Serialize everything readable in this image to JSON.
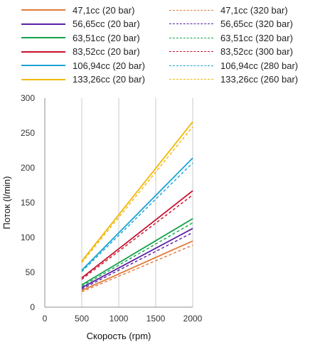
{
  "chart_data": {
    "type": "line",
    "title": "",
    "xlabel": "Скорость  (rpm)",
    "ylabel": "Поток  (l/min)",
    "xlim": [
      0,
      2000
    ],
    "ylim": [
      0,
      300
    ],
    "xticks": [
      "0",
      "500",
      "1000",
      "1500",
      "2000"
    ],
    "yticks": [
      "0",
      "50",
      "100",
      "150",
      "200",
      "250",
      "300"
    ],
    "grid": "vertical",
    "legend_position": "top",
    "series": [
      {
        "name": "47,1cc (20 bar)",
        "color": "#e07b39",
        "dash": "solid",
        "x": [
          500,
          2000
        ],
        "y": [
          24,
          95
        ]
      },
      {
        "name": "47,1cc (320 bar)",
        "color": "#e07b39",
        "dash": "dashed",
        "x": [
          500,
          2000
        ],
        "y": [
          22,
          89
        ]
      },
      {
        "name": "56,65cc (20 bar)",
        "color": "#5b1fa8",
        "dash": "solid",
        "x": [
          500,
          2000
        ],
        "y": [
          28,
          113
        ]
      },
      {
        "name": "56,65cc (320 bar)",
        "color": "#5b1fa8",
        "dash": "dashed",
        "x": [
          500,
          2000
        ],
        "y": [
          26,
          107
        ]
      },
      {
        "name": "63,51cc (20 bar)",
        "color": "#13a34a",
        "dash": "solid",
        "x": [
          500,
          2000
        ],
        "y": [
          32,
          127
        ]
      },
      {
        "name": "63,51cc (320 bar)",
        "color": "#13a34a",
        "dash": "dashed",
        "x": [
          500,
          2000
        ],
        "y": [
          30,
          121
        ]
      },
      {
        "name": "83,52cc (20 bar)",
        "color": "#c8102e",
        "dash": "solid",
        "x": [
          500,
          2000
        ],
        "y": [
          42,
          167
        ]
      },
      {
        "name": "83,52cc (300 bar)",
        "color": "#c8102e",
        "dash": "dashed",
        "x": [
          500,
          2000
        ],
        "y": [
          40,
          161
        ]
      },
      {
        "name": "106,94cc (20 bar)",
        "color": "#1aa3d4",
        "dash": "solid",
        "x": [
          500,
          2000
        ],
        "y": [
          53,
          214
        ]
      },
      {
        "name": "106,94cc (280 bar)",
        "color": "#1aa3d4",
        "dash": "dashed",
        "x": [
          500,
          2000
        ],
        "y": [
          51,
          207
        ]
      },
      {
        "name": "133,26cc (20 bar)",
        "color": "#f2b705",
        "dash": "solid",
        "x": [
          500,
          2000
        ],
        "y": [
          66,
          266
        ]
      },
      {
        "name": "133,26cc (260 bar)",
        "color": "#f2b705",
        "dash": "dashed",
        "x": [
          500,
          2000
        ],
        "y": [
          64,
          259
        ]
      }
    ]
  }
}
